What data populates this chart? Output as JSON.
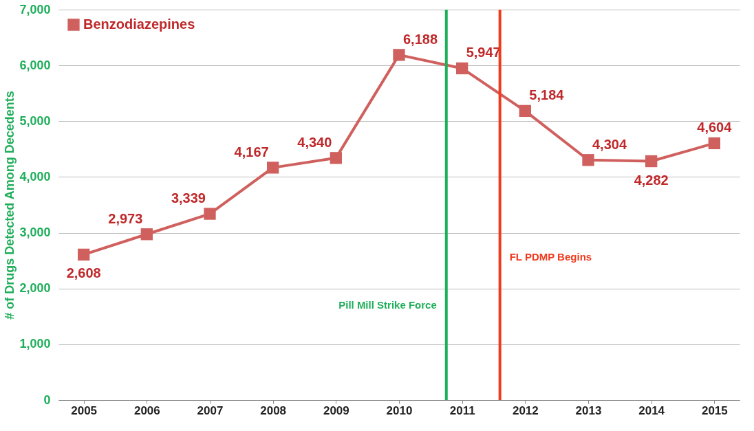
{
  "chart_data": {
    "type": "line",
    "ylabel": "# of Drugs Detected Among Decedents",
    "x": [
      2005,
      2006,
      2007,
      2008,
      2009,
      2010,
      2011,
      2012,
      2013,
      2014,
      2015
    ],
    "series": [
      {
        "name": "Benzodiazepines",
        "color": "#d0605e",
        "values": [
          2608,
          2973,
          3339,
          4167,
          4340,
          6188,
          5947,
          5184,
          4304,
          4282,
          4604
        ]
      }
    ],
    "xlim": [
      2004.6,
      2015.4
    ],
    "xticks": [
      2005,
      2006,
      2007,
      2008,
      2009,
      2010,
      2011,
      2012,
      2013,
      2014,
      2015
    ],
    "ylim": [
      0,
      7000
    ],
    "yticks": [
      {
        "value": 0,
        "label": "0"
      },
      {
        "value": 1000,
        "label": "1,000"
      },
      {
        "value": 2000,
        "label": "2,000"
      },
      {
        "value": 3000,
        "label": "3,000"
      },
      {
        "value": 4000,
        "label": "4,000"
      },
      {
        "value": 5000,
        "label": "5,000"
      },
      {
        "value": 6000,
        "label": "6,000"
      },
      {
        "value": 7000,
        "label": "7,000"
      }
    ],
    "ref_lines": [
      {
        "axis": "x",
        "value": 2010.75,
        "label": "Pill Mill Strike Force",
        "color": "#1fae5a"
      },
      {
        "axis": "x",
        "value": 2011.6,
        "label": "FL PDMP Begins",
        "color": "#f03a1e"
      }
    ],
    "value_labels": [
      [
        "2,608",
        "2,973",
        "3,339",
        "4,167",
        "4,340",
        "6,188",
        "5,947",
        "5,184",
        "4,304",
        "4,282",
        "4,604"
      ]
    ],
    "grid": "y",
    "legend": "top left",
    "marker": "square",
    "line_style": "solid"
  }
}
